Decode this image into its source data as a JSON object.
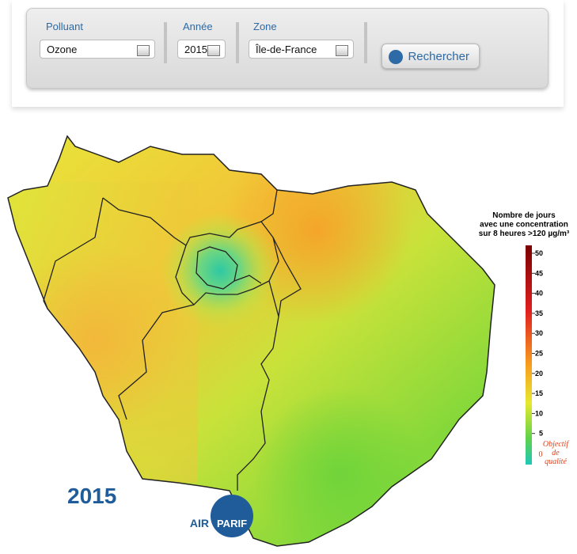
{
  "form": {
    "fields": [
      {
        "label": "Polluant",
        "value": "Ozone"
      },
      {
        "label": "Année",
        "value": "2015"
      },
      {
        "label": "Zone",
        "value": "Île-de-France"
      }
    ],
    "button": "Rechercher"
  },
  "map": {
    "year": "2015",
    "logo": [
      "AIR",
      "PARIF"
    ],
    "legend": {
      "title": [
        "Nombre de jours",
        "avec une concentration",
        "sur 8 heures >120 µg/m³"
      ],
      "range": [
        0,
        50
      ],
      "ticks": [
        50,
        45,
        40,
        35,
        30,
        25,
        20,
        15,
        10,
        5
      ],
      "objective": {
        "value": 0,
        "label": [
          "Objectif",
          "de",
          "qualité"
        ]
      }
    }
  }
}
